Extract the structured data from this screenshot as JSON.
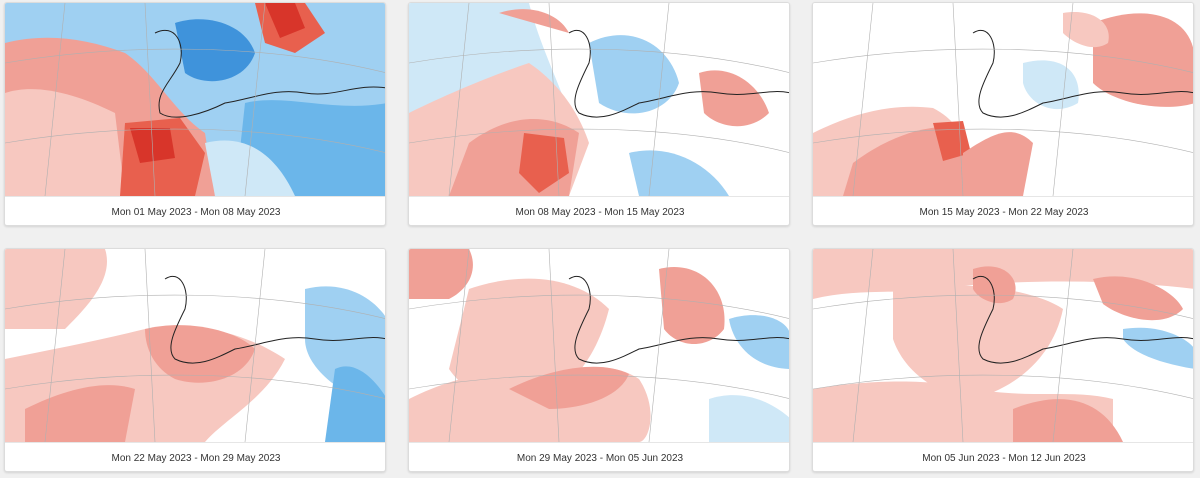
{
  "colors": {
    "page_bg": "#f0f0f0",
    "card_bg": "#ffffff",
    "warm_light": "#f7c8c0",
    "warm_mid": "#f0a096",
    "warm_strong": "#e8604e",
    "warm_deep": "#d8352a",
    "cold_light": "#cfe8f7",
    "cold_mid": "#9fd0f2",
    "cold_strong": "#6bb6ea",
    "cold_deep": "#3f93db",
    "coast": "#222222",
    "graticule": "#b0b0b0"
  },
  "panels": [
    {
      "period": "Mon 01 May 2023 - Mon 08 May 2023",
      "theme": "warm-southwest-cold-europe"
    },
    {
      "period": "Mon 08 May 2023 - Mon 15 May 2023",
      "theme": "warm-southwest-cold-central"
    },
    {
      "period": "Mon 15 May 2023 - Mon 22 May 2023",
      "theme": "mixed-warm-west-east"
    },
    {
      "period": "Mon 22 May 2023 - Mon 29 May 2023",
      "theme": "warm-europe-cold-east"
    },
    {
      "period": "Mon 29 May 2023 - Mon 05 Jun 2023",
      "theme": "warm-europe-cold-northeast"
    },
    {
      "period": "Mon 05 Jun 2023 - Mon 12 Jun 2023",
      "theme": "warm-broad"
    }
  ]
}
